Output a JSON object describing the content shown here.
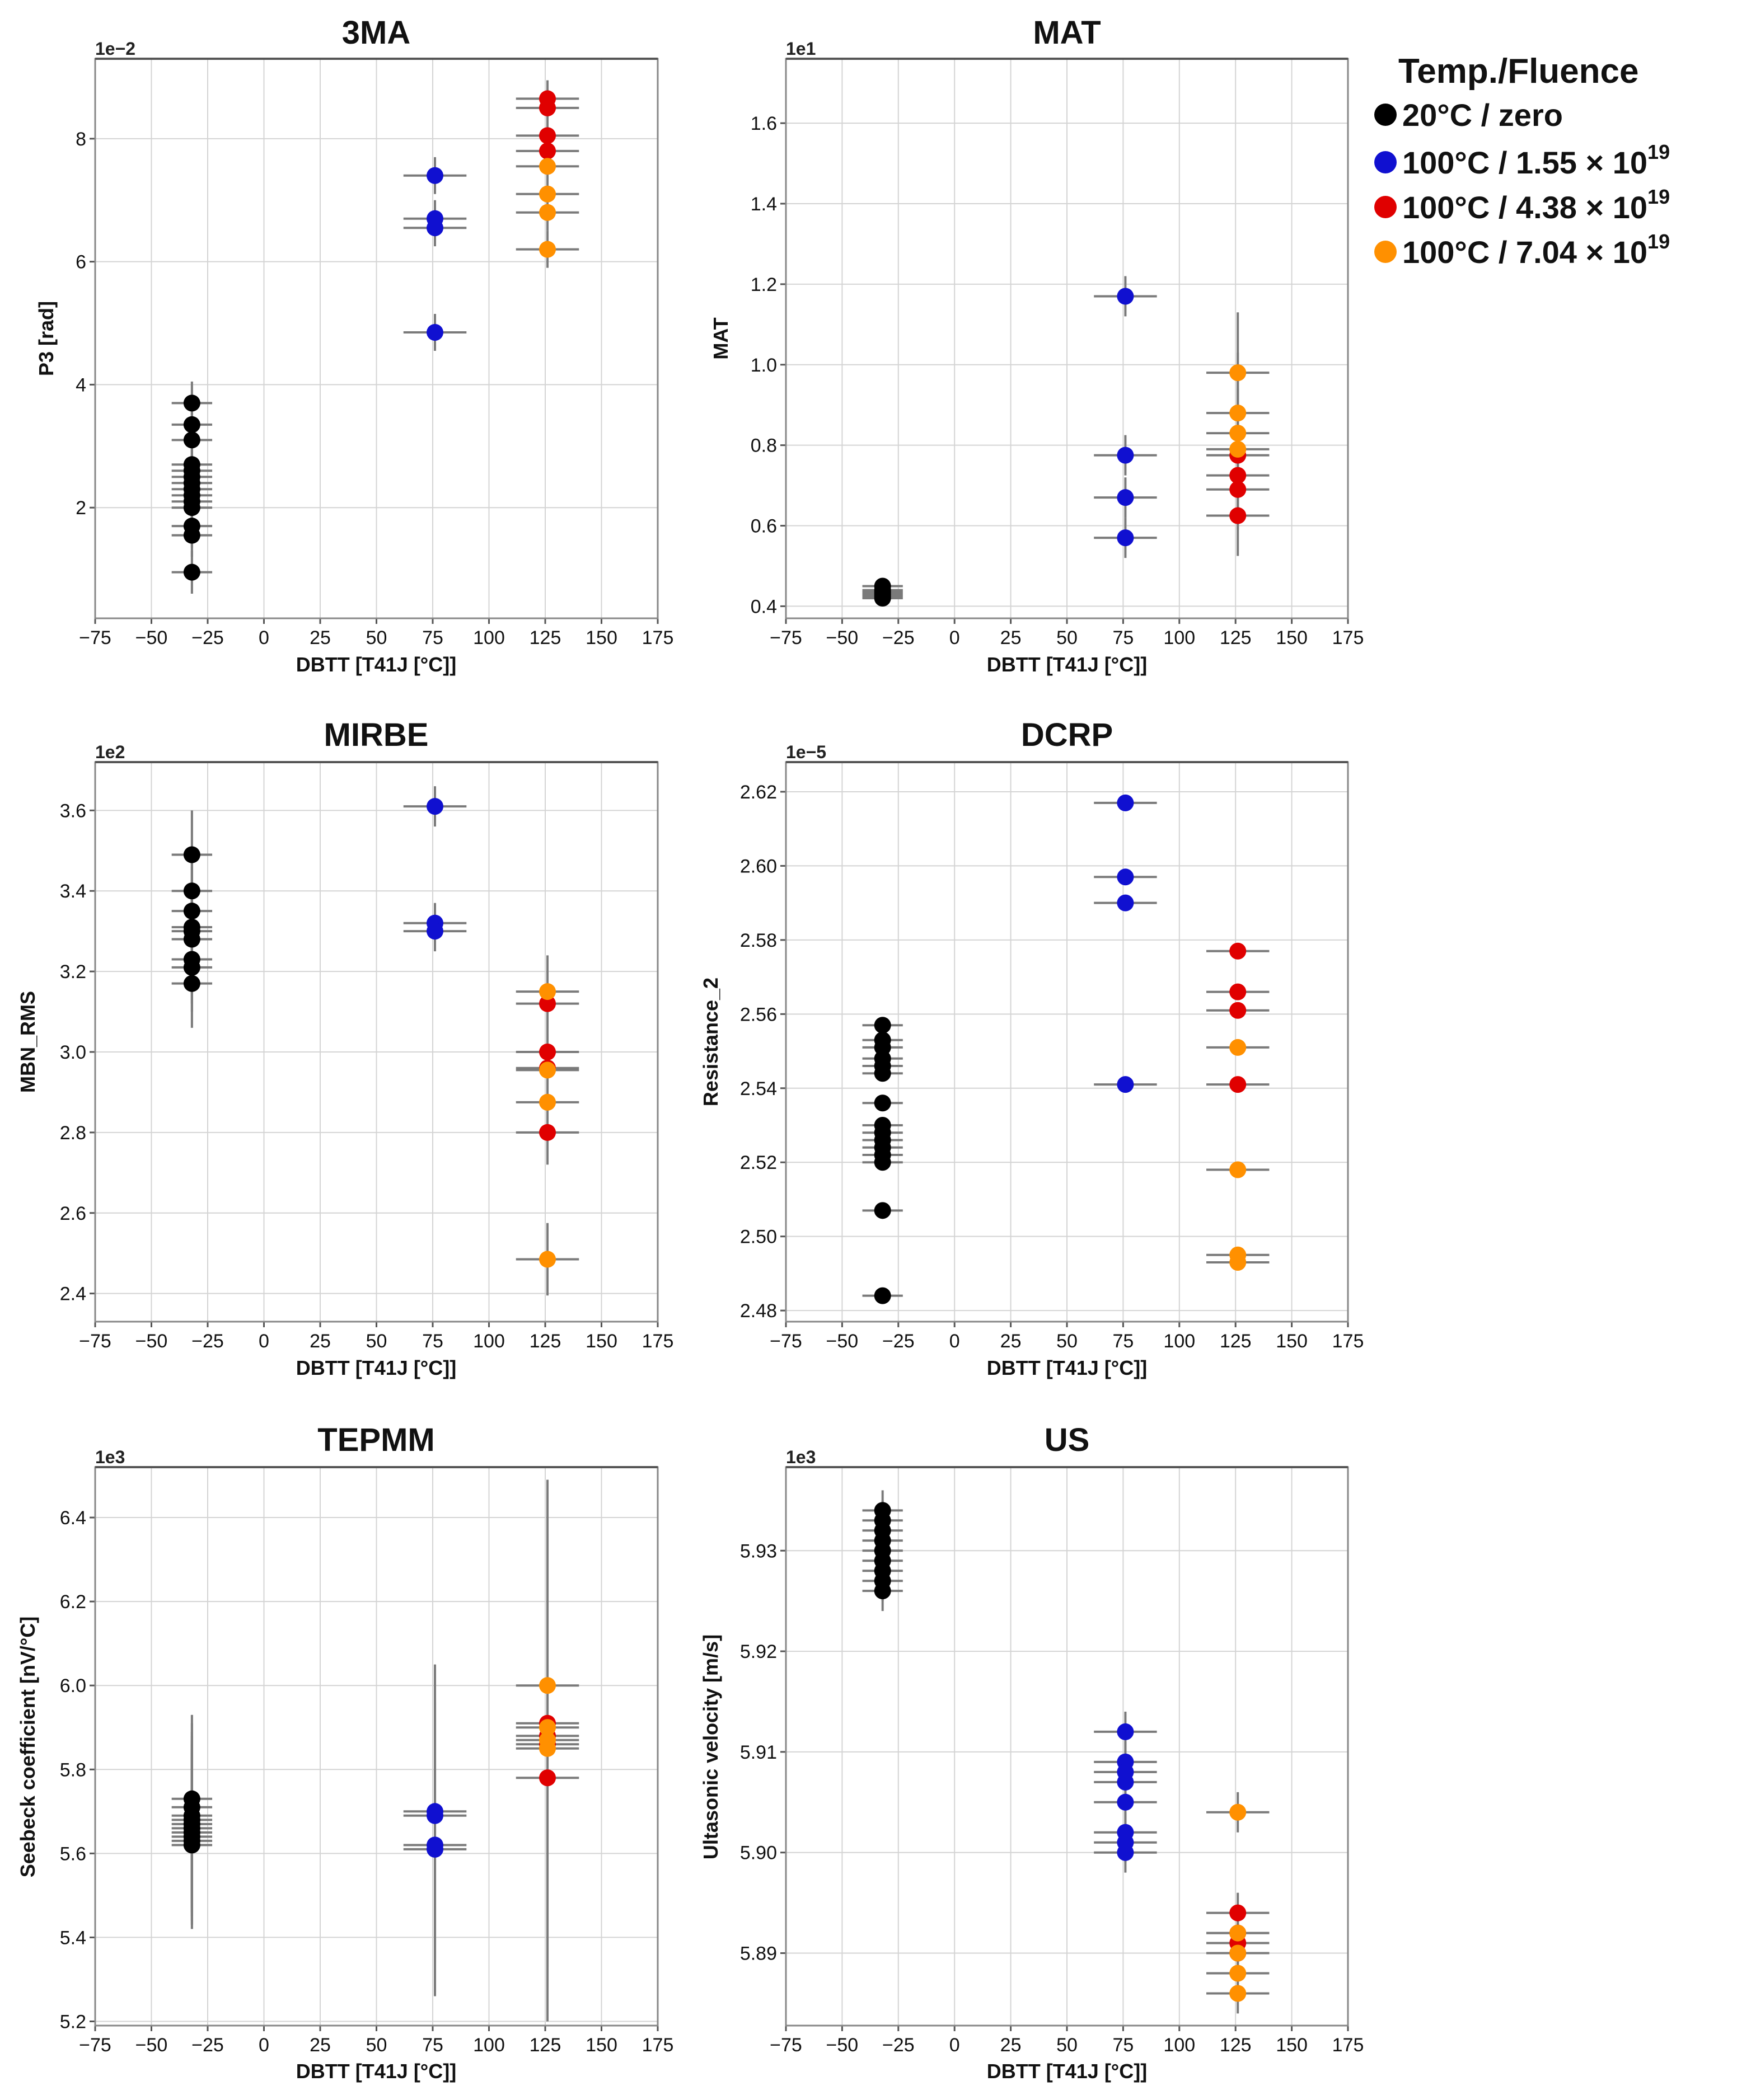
{
  "legend": {
    "title": "Temp./Fluence",
    "entries": [
      {
        "key": "zero",
        "label": "20°C / zero",
        "exponent": "",
        "color": "#000000"
      },
      {
        "key": "f155",
        "label": "100°C / 1.55 × 10",
        "exponent": "19",
        "color": "#1010d0"
      },
      {
        "key": "f438",
        "label": "100°C / 4.38 × 10",
        "exponent": "19",
        "color": "#e00000"
      },
      {
        "key": "f704",
        "label": "100°C / 7.04 × 10",
        "exponent": "19",
        "color": "#ff9000"
      }
    ]
  },
  "chart_data": [
    {
      "type": "scatter",
      "title": "3MA",
      "xlabel": "DBTT [T41J [°C]]",
      "ylabel": "P3 [rad]",
      "scale_label": "1e−2",
      "xlim": [
        -75,
        175
      ],
      "xticks": [
        -75,
        -50,
        -25,
        0,
        25,
        50,
        75,
        100,
        125,
        150,
        175
      ],
      "ylim": [
        0.2,
        9.3
      ],
      "yticks": [
        2,
        4,
        6,
        8
      ],
      "ytick_labels": [
        "2",
        "4",
        "6",
        "8"
      ],
      "series": [
        {
          "group": "zero",
          "x": -32,
          "xerr": 9,
          "y": [
            3.7,
            3.35,
            3.1,
            2.7,
            2.6,
            2.5,
            2.4,
            2.3,
            2.2,
            2.1,
            2.0,
            1.7,
            1.55,
            0.95
          ],
          "yerr": 0.35
        },
        {
          "group": "f155",
          "x": 76,
          "xerr": 14,
          "y": [
            7.4,
            6.7,
            6.55,
            4.85
          ],
          "yerr": 0.3
        },
        {
          "group": "f438",
          "x": 126,
          "xerr": 14,
          "y": [
            8.65,
            8.5,
            8.05,
            7.8
          ],
          "yerr": 0.3
        },
        {
          "group": "f704",
          "x": 126,
          "xerr": 14,
          "y": [
            7.55,
            7.1,
            6.8,
            6.2
          ],
          "yerr": 0.3
        }
      ]
    },
    {
      "type": "scatter",
      "title": "MAT",
      "xlabel": "DBTT [T41J [°C]]",
      "ylabel": "MAT",
      "scale_label": "1e1",
      "xlim": [
        -75,
        175
      ],
      "xticks": [
        -75,
        -50,
        -25,
        0,
        25,
        50,
        75,
        100,
        125,
        150,
        175
      ],
      "ylim": [
        0.37,
        1.76
      ],
      "yticks": [
        0.4,
        0.6,
        0.8,
        1.0,
        1.2,
        1.4,
        1.6
      ],
      "ytick_labels": [
        "0.4",
        "0.6",
        "0.8",
        "1.0",
        "1.2",
        "1.4",
        "1.6"
      ],
      "series": [
        {
          "group": "zero",
          "x": -32,
          "xerr": 9,
          "y": [
            0.45,
            0.44,
            0.435,
            0.43,
            0.425,
            0.42
          ],
          "yerr": 0.02
        },
        {
          "group": "f155",
          "x": 76,
          "xerr": 14,
          "y": [
            1.17,
            0.775,
            0.67,
            0.57
          ],
          "yerr": 0.05
        },
        {
          "group": "f438",
          "x": 126,
          "xerr": 14,
          "y": [
            0.775,
            0.725,
            0.69,
            0.625
          ],
          "yerr": 0.1
        },
        {
          "group": "f704",
          "x": 126,
          "xerr": 14,
          "y": [
            0.98,
            0.88,
            0.83,
            0.79
          ],
          "yerr": 0.15
        }
      ]
    },
    {
      "type": "scatter",
      "title": "MIRBE",
      "xlabel": "DBTT [T41J [°C]]",
      "ylabel": "MBN_RMS",
      "scale_label": "1e2",
      "xlim": [
        -75,
        175
      ],
      "xticks": [
        -75,
        -50,
        -25,
        0,
        25,
        50,
        75,
        100,
        125,
        150,
        175
      ],
      "ylim": [
        2.33,
        3.72
      ],
      "yticks": [
        2.4,
        2.6,
        2.8,
        3.0,
        3.2,
        3.4,
        3.6
      ],
      "ytick_labels": [
        "2.4",
        "2.6",
        "2.8",
        "3.0",
        "3.2",
        "3.4",
        "3.6"
      ],
      "series": [
        {
          "group": "zero",
          "x": -32,
          "xerr": 9,
          "y": [
            3.49,
            3.4,
            3.35,
            3.31,
            3.3,
            3.28,
            3.23,
            3.21,
            3.17
          ],
          "yerr": 0.11
        },
        {
          "group": "f155",
          "x": 76,
          "xerr": 14,
          "y": [
            3.61,
            3.32,
            3.3
          ],
          "yerr": 0.05
        },
        {
          "group": "f438",
          "x": 126,
          "xerr": 14,
          "y": [
            3.12,
            3.0,
            2.96,
            2.8
          ],
          "yerr": 0.08
        },
        {
          "group": "f704",
          "x": 126,
          "xerr": 14,
          "y": [
            3.15,
            2.955,
            2.875,
            2.485
          ],
          "yerr": 0.09
        }
      ]
    },
    {
      "type": "scatter",
      "title": "DCRP",
      "xlabel": "DBTT [T41J [°C]]",
      "ylabel": "Resistance_2",
      "scale_label": "1e−5",
      "xlim": [
        -75,
        175
      ],
      "xticks": [
        -75,
        -50,
        -25,
        0,
        25,
        50,
        75,
        100,
        125,
        150,
        175
      ],
      "ylim": [
        2.477,
        2.628
      ],
      "yticks": [
        2.48,
        2.5,
        2.52,
        2.54,
        2.56,
        2.58,
        2.6,
        2.62
      ],
      "ytick_labels": [
        "2.48",
        "2.50",
        "2.52",
        "2.54",
        "2.56",
        "2.58",
        "2.60",
        "2.62"
      ],
      "series": [
        {
          "group": "zero",
          "x": -32,
          "xerr": 9,
          "y": [
            2.557,
            2.553,
            2.551,
            2.548,
            2.546,
            2.544,
            2.536,
            2.53,
            2.528,
            2.526,
            2.524,
            2.522,
            2.52,
            2.507,
            2.484
          ],
          "yerr": 0.001
        },
        {
          "group": "f155",
          "x": 76,
          "xerr": 14,
          "y": [
            2.617,
            2.597,
            2.59,
            2.541
          ],
          "yerr": 0.001
        },
        {
          "group": "f438",
          "x": 126,
          "xerr": 14,
          "y": [
            2.577,
            2.566,
            2.561,
            2.541
          ],
          "yerr": 0.001
        },
        {
          "group": "f704",
          "x": 126,
          "xerr": 14,
          "y": [
            2.551,
            2.518,
            2.495,
            2.493
          ],
          "yerr": 0.001
        }
      ]
    },
    {
      "type": "scatter",
      "title": "TEPMM",
      "xlabel": "DBTT [T41J [°C]]",
      "ylabel": "Seebeck coefficient [nV/°C]",
      "scale_label": "1e3",
      "xlim": [
        -75,
        175
      ],
      "xticks": [
        -75,
        -50,
        -25,
        0,
        25,
        50,
        75,
        100,
        125,
        150,
        175
      ],
      "ylim": [
        5.19,
        6.52
      ],
      "yticks": [
        5.2,
        5.4,
        5.6,
        5.8,
        6.0,
        6.2,
        6.4
      ],
      "ytick_labels": [
        "5.2",
        "5.4",
        "5.6",
        "5.8",
        "6.0",
        "6.2",
        "6.4"
      ],
      "series": [
        {
          "group": "zero",
          "x": -32,
          "xerr": 9,
          "y": [
            5.73,
            5.71,
            5.69,
            5.68,
            5.67,
            5.66,
            5.65,
            5.64,
            5.63,
            5.62
          ],
          "yerr": 0.2
        },
        {
          "group": "f155",
          "x": 76,
          "xerr": 14,
          "y": [
            5.7,
            5.69,
            5.62,
            5.61
          ],
          "yerr": 0.35
        },
        {
          "group": "f438",
          "x": 126,
          "xerr": 14,
          "y": [
            5.91,
            5.88,
            5.86,
            5.78
          ],
          "yerr": 0.58
        },
        {
          "group": "f704",
          "x": 126,
          "xerr": 14,
          "y": [
            6.0,
            5.9,
            5.87,
            5.85
          ],
          "yerr": 0.05
        }
      ]
    },
    {
      "type": "scatter",
      "title": "US",
      "xlabel": "DBTT [T41J [°C]]",
      "ylabel": "Ultasonic velocity [m/s]",
      "scale_label": "1e3",
      "xlim": [
        -75,
        175
      ],
      "xticks": [
        -75,
        -50,
        -25,
        0,
        25,
        50,
        75,
        100,
        125,
        150,
        175
      ],
      "ylim": [
        5.8828,
        5.9383
      ],
      "yticks": [
        5.89,
        5.9,
        5.91,
        5.92,
        5.93
      ],
      "ytick_labels": [
        "5.89",
        "5.90",
        "5.91",
        "5.92",
        "5.93"
      ],
      "series": [
        {
          "group": "zero",
          "x": -32,
          "xerr": 9,
          "y": [
            5.934,
            5.933,
            5.932,
            5.931,
            5.93,
            5.929,
            5.928,
            5.927,
            5.926
          ],
          "yerr": 0.002
        },
        {
          "group": "f155",
          "x": 76,
          "xerr": 14,
          "y": [
            5.912,
            5.909,
            5.908,
            5.907,
            5.905,
            5.902,
            5.901,
            5.9
          ],
          "yerr": 0.002
        },
        {
          "group": "f438",
          "x": 126,
          "xerr": 14,
          "y": [
            5.894,
            5.892,
            5.891,
            5.89
          ],
          "yerr": 0.002
        },
        {
          "group": "f704",
          "x": 126,
          "xerr": 14,
          "y": [
            5.904,
            5.892,
            5.89,
            5.888,
            5.886
          ],
          "yerr": 0.002
        }
      ]
    }
  ]
}
